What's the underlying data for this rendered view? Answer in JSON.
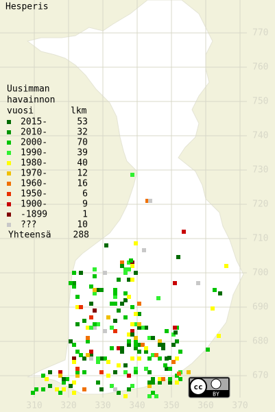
{
  "title": "Hesperis",
  "legend": {
    "heading": [
      "Uusimman",
      "havainnon",
      "vuosi"
    ],
    "count_heading": "lkm",
    "rows": [
      {
        "label": "2015-",
        "count": 53,
        "color": "#006a00"
      },
      {
        "label": "2010-",
        "count": 32,
        "color": "#009400"
      },
      {
        "label": "2000-",
        "count": 70,
        "color": "#00c400"
      },
      {
        "label": "1990-",
        "count": 39,
        "color": "#30f030"
      },
      {
        "label": "1980-",
        "count": 40,
        "color": "#ffff00"
      },
      {
        "label": "1970-",
        "count": 12,
        "color": "#f0c000"
      },
      {
        "label": "1960-",
        "count": 16,
        "color": "#f07000"
      },
      {
        "label": "1950-",
        "count": 6,
        "color": "#e83000"
      },
      {
        "label": "1900-",
        "count": 9,
        "color": "#c80000"
      },
      {
        "label": "-1899",
        "count": 1,
        "color": "#800000"
      },
      {
        "label": "???",
        "count": 10,
        "color": "#c8c8c8"
      }
    ],
    "total": {
      "label": "Yhteensä",
      "count": 288
    }
  },
  "grid": {
    "x_labels": [
      310,
      320,
      330,
      340,
      350,
      360,
      370
    ],
    "y_labels": [
      670,
      680,
      690,
      700,
      710,
      720,
      730,
      740,
      750,
      760,
      770
    ]
  },
  "license": {
    "cc": "cc",
    "by": "BY"
  }
}
